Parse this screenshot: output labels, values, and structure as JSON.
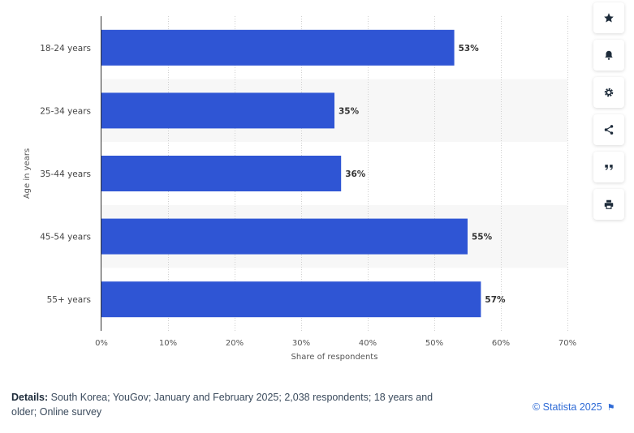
{
  "chart_data": {
    "type": "bar",
    "orientation": "horizontal",
    "categories": [
      "18-24 years",
      "25-34 years",
      "35-44 years",
      "45-54 years",
      "55+ years"
    ],
    "values": [
      53,
      35,
      36,
      55,
      57
    ],
    "value_labels": [
      "53%",
      "35%",
      "36%",
      "55%",
      "57%"
    ],
    "xlabel": "Share of respondents",
    "ylabel": "Age in years",
    "xlim": [
      0,
      70
    ],
    "x_ticks": [
      "0%",
      "10%",
      "20%",
      "30%",
      "40%",
      "50%",
      "60%",
      "70%"
    ],
    "grid": "vertical dotted",
    "bar_color": "#2f55d4"
  },
  "footer": {
    "details_label": "Details:",
    "details_text": " South Korea; YouGov; January and February 2025; 2,038 respondents; 18 years and older; Online survey",
    "copyright": "© Statista 2025"
  },
  "toolbar": {
    "icons": [
      "star-icon",
      "bell-icon",
      "gear-icon",
      "share-icon",
      "quote-icon",
      "print-icon"
    ]
  }
}
